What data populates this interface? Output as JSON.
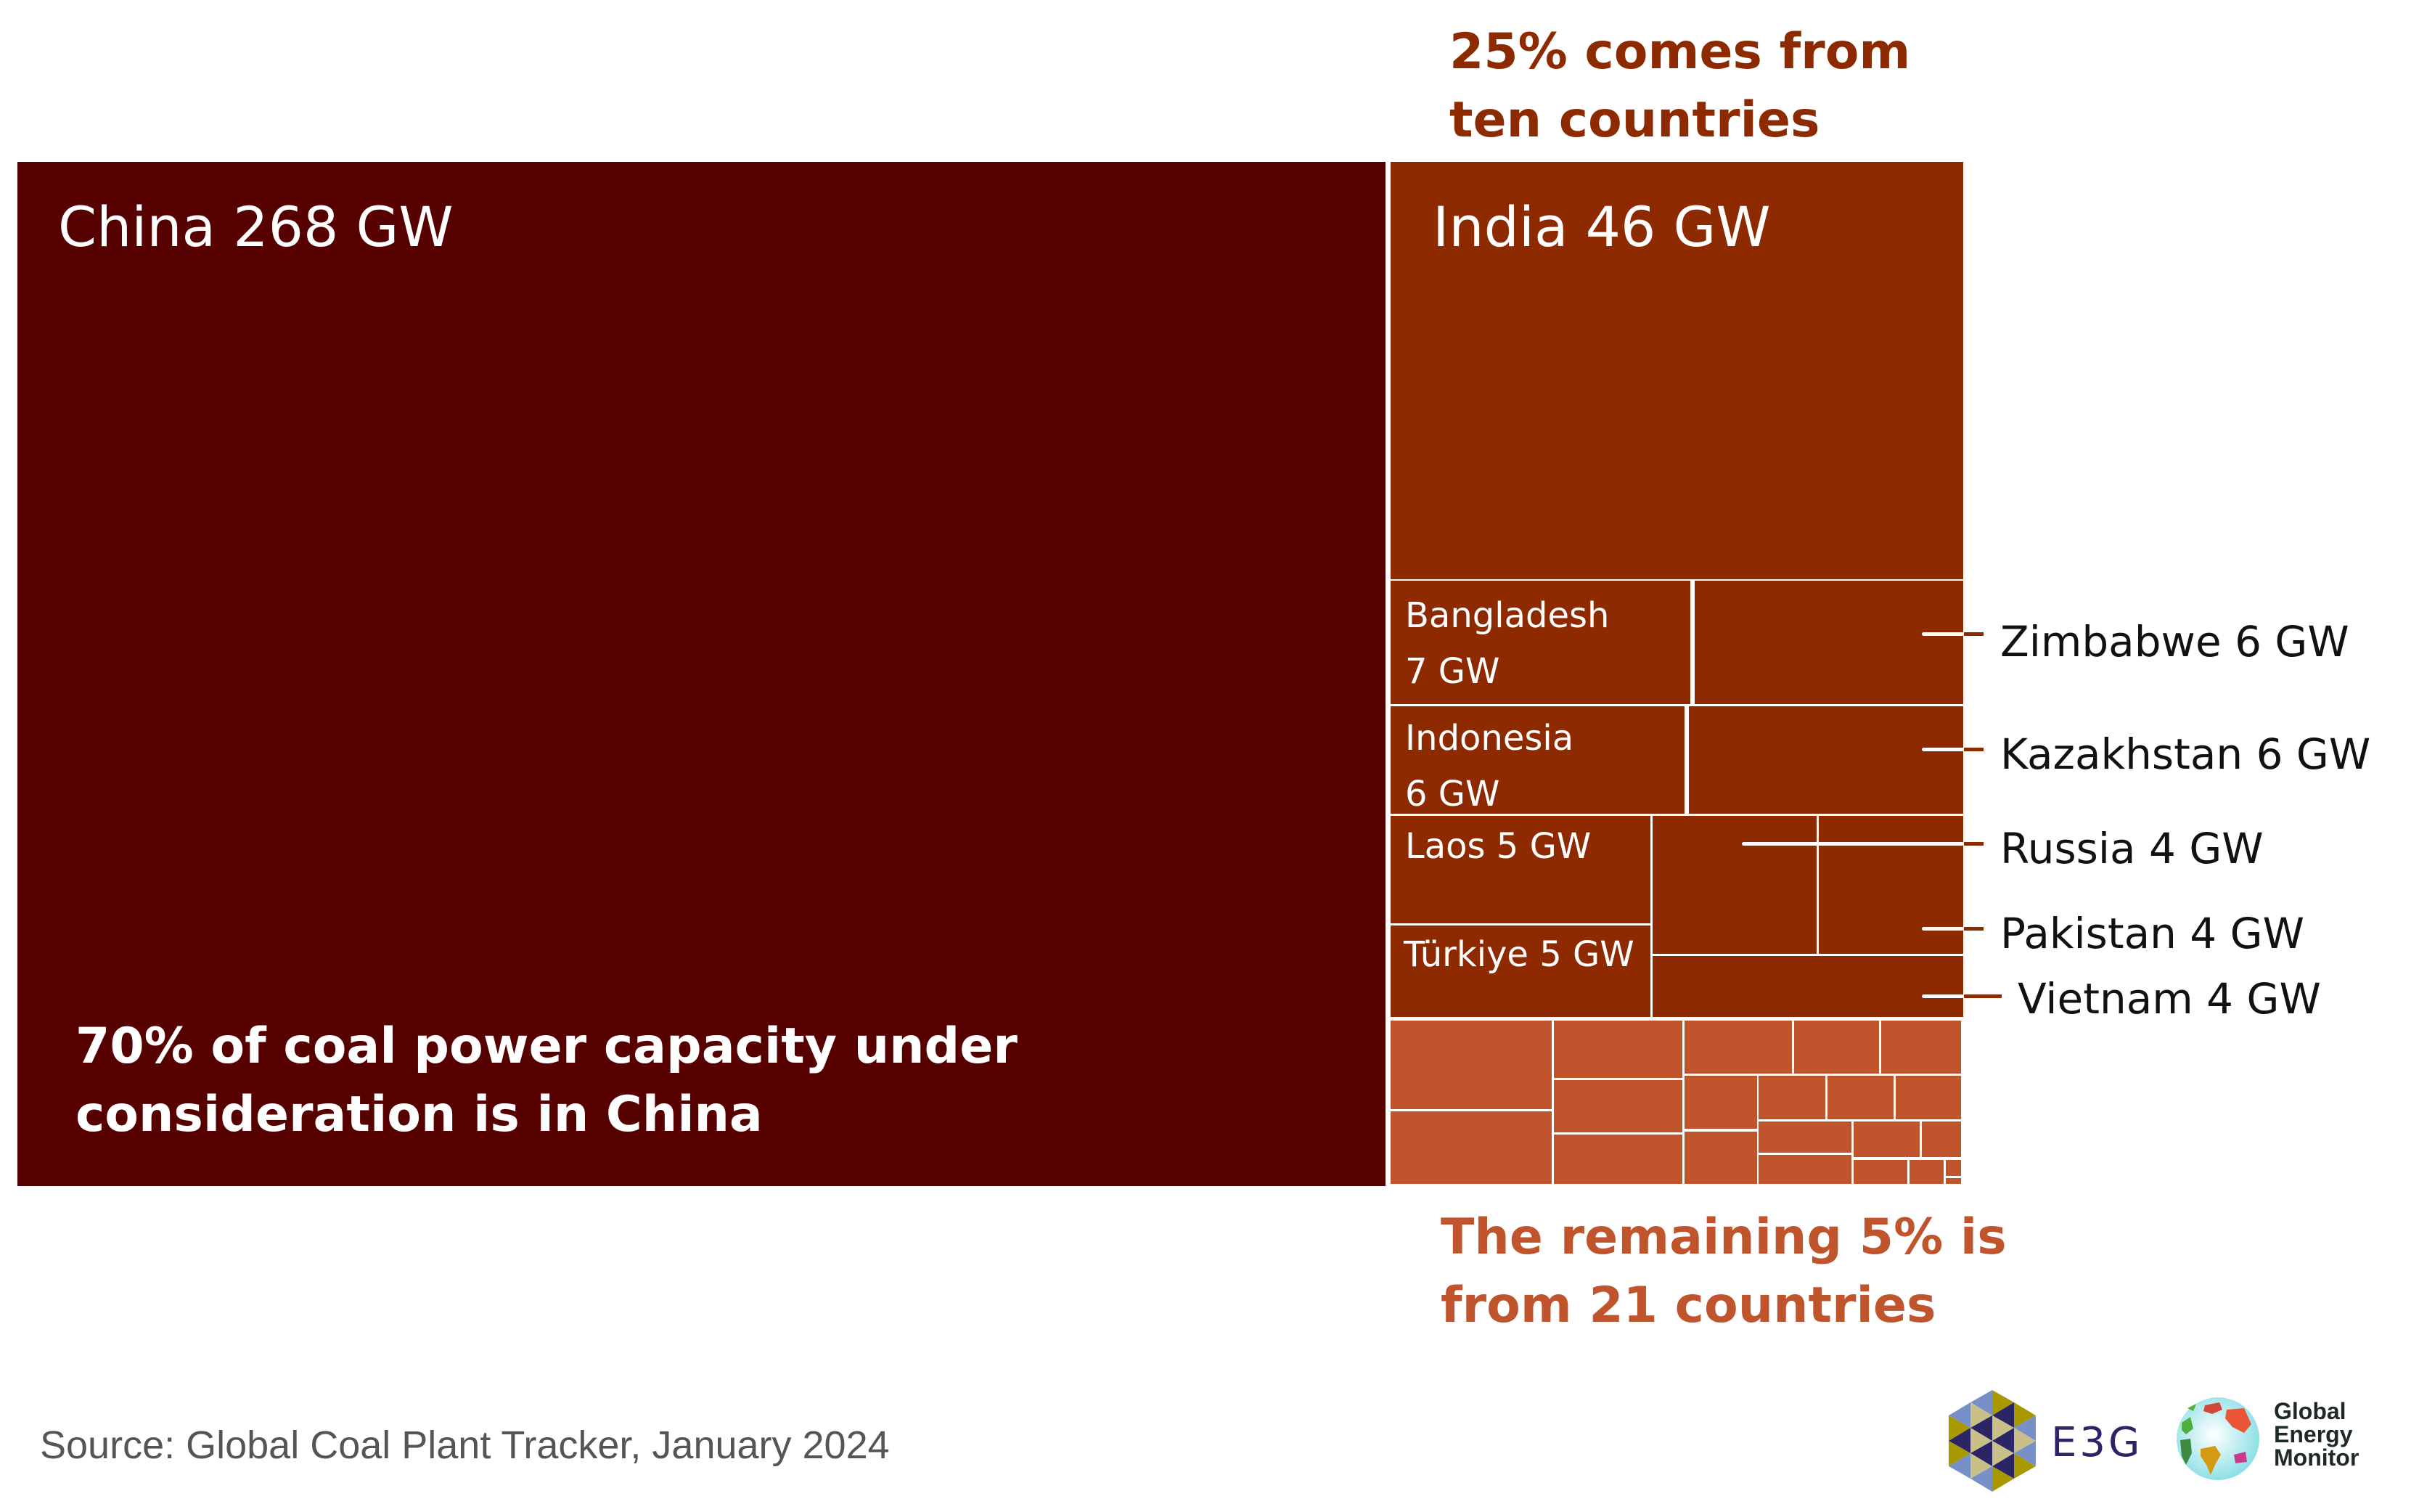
{
  "chart_data": {
    "type": "treemap",
    "title": "",
    "unit": "GW",
    "groups": [
      {
        "name": "China",
        "share_label": "70% of coal power capacity under consideration is in China",
        "color": "#560000",
        "items": [
          {
            "name": "China",
            "value": 268,
            "label": "China 268 GW"
          }
        ]
      },
      {
        "name": "Ten countries",
        "share_label": "25% comes from ten countries",
        "color": "#8e2a00",
        "items": [
          {
            "name": "India",
            "value": 46,
            "label": "India 46 GW"
          },
          {
            "name": "Bangladesh",
            "value": 7,
            "label": "Bangladesh\n7 GW"
          },
          {
            "name": "Zimbabwe",
            "value": 6,
            "label": "Zimbabwe 6 GW"
          },
          {
            "name": "Indonesia",
            "value": 6,
            "label": "Indonesia\n6 GW"
          },
          {
            "name": "Kazakhstan",
            "value": 6,
            "label": "Kazakhstan 6 GW"
          },
          {
            "name": "Laos",
            "value": 5,
            "label": "Laos 5 GW"
          },
          {
            "name": "Türkiye",
            "value": 5,
            "label": "Türkiye 5 GW"
          },
          {
            "name": "Russia",
            "value": 4,
            "label": "Russia 4 GW"
          },
          {
            "name": "Pakistan",
            "value": 4,
            "label": "Pakistan 4 GW"
          },
          {
            "name": "Vietnam",
            "value": 4,
            "label": "Vietnam 4 GW"
          }
        ]
      },
      {
        "name": "Remaining 21 countries",
        "share_label": "The remaining 5% is from 21 countries",
        "color": "#c0542d",
        "count": 21,
        "items_unlabeled": true
      }
    ]
  },
  "annotations": {
    "china_share": "70% of coal power capacity under\nconsideration is in China",
    "ten_share": "25% comes from\nten countries",
    "remaining_share": "The remaining 5% is\nfrom 21 countries"
  },
  "source": "Source: Global Coal Plant Tracker, January 2024",
  "logos": {
    "e3g": "E3G",
    "gem": "Global\nEnergy\nMonitor"
  },
  "colors": {
    "china": "#560000",
    "ten": "#8e2a00",
    "remaining": "#c0542d",
    "ten_text": "#8e2a00",
    "remaining_text": "#c0542d"
  }
}
